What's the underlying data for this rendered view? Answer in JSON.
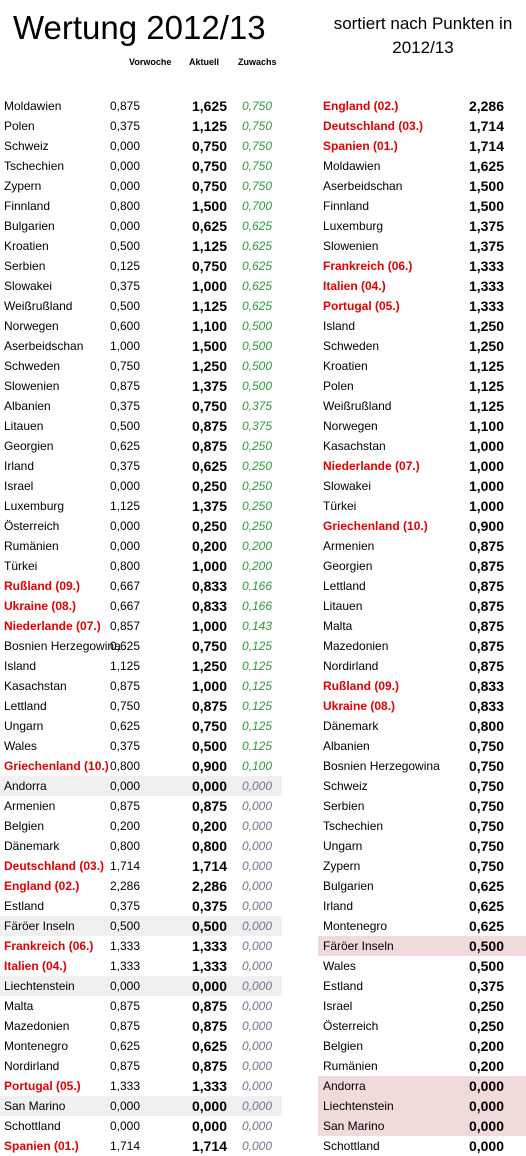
{
  "title": "Wertung 2012/13",
  "sort_title": "sortiert nach Punkten in 2012/13",
  "headers": {
    "vorwoche": "Vorwoche",
    "aktuell": "Aktuell",
    "zuwachs": "Zuwachs"
  },
  "colors": {
    "highlight": "#e00000",
    "gain": "#2f9a3a",
    "zero": "#7a7090",
    "grey_row": "#f0f0f0",
    "pink_row": "#f1dada"
  },
  "left_rows": [
    {
      "name": "Moldawien",
      "vorwoche": "0,875",
      "aktuell": "1,625",
      "zuwachs": "0,750"
    },
    {
      "name": "Polen",
      "vorwoche": "0,375",
      "aktuell": "1,125",
      "zuwachs": "0,750"
    },
    {
      "name": "Schweiz",
      "vorwoche": "0,000",
      "aktuell": "0,750",
      "zuwachs": "0,750"
    },
    {
      "name": "Tschechien",
      "vorwoche": "0,000",
      "aktuell": "0,750",
      "zuwachs": "0,750"
    },
    {
      "name": "Zypern",
      "vorwoche": "0,000",
      "aktuell": "0,750",
      "zuwachs": "0,750"
    },
    {
      "name": "Finnland",
      "vorwoche": "0,800",
      "aktuell": "1,500",
      "zuwachs": "0,700"
    },
    {
      "name": "Bulgarien",
      "vorwoche": "0,000",
      "aktuell": "0,625",
      "zuwachs": "0,625"
    },
    {
      "name": "Kroatien",
      "vorwoche": "0,500",
      "aktuell": "1,125",
      "zuwachs": "0,625"
    },
    {
      "name": "Serbien",
      "vorwoche": "0,125",
      "aktuell": "0,750",
      "zuwachs": "0,625"
    },
    {
      "name": "Slowakei",
      "vorwoche": "0,375",
      "aktuell": "1,000",
      "zuwachs": "0,625"
    },
    {
      "name": "Weißrußland",
      "vorwoche": "0,500",
      "aktuell": "1,125",
      "zuwachs": "0,625"
    },
    {
      "name": "Norwegen",
      "vorwoche": "0,600",
      "aktuell": "1,100",
      "zuwachs": "0,500"
    },
    {
      "name": "Aserbeidschan",
      "vorwoche": "1,000",
      "aktuell": "1,500",
      "zuwachs": "0,500"
    },
    {
      "name": "Schweden",
      "vorwoche": "0,750",
      "aktuell": "1,250",
      "zuwachs": "0,500"
    },
    {
      "name": "Slowenien",
      "vorwoche": "0,875",
      "aktuell": "1,375",
      "zuwachs": "0,500"
    },
    {
      "name": "Albanien",
      "vorwoche": "0,375",
      "aktuell": "0,750",
      "zuwachs": "0,375"
    },
    {
      "name": "Litauen",
      "vorwoche": "0,500",
      "aktuell": "0,875",
      "zuwachs": "0,375"
    },
    {
      "name": "Georgien",
      "vorwoche": "0,625",
      "aktuell": "0,875",
      "zuwachs": "0,250"
    },
    {
      "name": "Irland",
      "vorwoche": "0,375",
      "aktuell": "0,625",
      "zuwachs": "0,250"
    },
    {
      "name": "Israel",
      "vorwoche": "0,000",
      "aktuell": "0,250",
      "zuwachs": "0,250"
    },
    {
      "name": "Luxemburg",
      "vorwoche": "1,125",
      "aktuell": "1,375",
      "zuwachs": "0,250"
    },
    {
      "name": "Österreich",
      "vorwoche": "0,000",
      "aktuell": "0,250",
      "zuwachs": "0,250"
    },
    {
      "name": "Rumänien",
      "vorwoche": "0,000",
      "aktuell": "0,200",
      "zuwachs": "0,200"
    },
    {
      "name": "Türkei",
      "vorwoche": "0,800",
      "aktuell": "1,000",
      "zuwachs": "0,200"
    },
    {
      "name": "Rußland (09.)",
      "vorwoche": "0,667",
      "aktuell": "0,833",
      "zuwachs": "0,166",
      "red": true
    },
    {
      "name": "Ukraine (08.)",
      "vorwoche": "0,667",
      "aktuell": "0,833",
      "zuwachs": "0,166",
      "red": true
    },
    {
      "name": "Niederlande (07.)",
      "vorwoche": "0,857",
      "aktuell": "1,000",
      "zuwachs": "0,143",
      "red": true
    },
    {
      "name": "Bosnien Herzegowina",
      "vorwoche": "0,625",
      "aktuell": "0,750",
      "zuwachs": "0,125"
    },
    {
      "name": "Island",
      "vorwoche": "1,125",
      "aktuell": "1,250",
      "zuwachs": "0,125"
    },
    {
      "name": "Kasachstan",
      "vorwoche": "0,875",
      "aktuell": "1,000",
      "zuwachs": "0,125"
    },
    {
      "name": "Lettland",
      "vorwoche": "0,750",
      "aktuell": "0,875",
      "zuwachs": "0,125"
    },
    {
      "name": "Ungarn",
      "vorwoche": "0,625",
      "aktuell": "0,750",
      "zuwachs": "0,125"
    },
    {
      "name": "Wales",
      "vorwoche": "0,375",
      "aktuell": "0,500",
      "zuwachs": "0,125"
    },
    {
      "name": "Griechenland (10.)",
      "vorwoche": "0,800",
      "aktuell": "0,900",
      "zuwachs": "0,100",
      "red": true
    },
    {
      "name": "Andorra",
      "vorwoche": "0,000",
      "aktuell": "0,000",
      "zuwachs": "0,000",
      "hl": true
    },
    {
      "name": "Armenien",
      "vorwoche": "0,875",
      "aktuell": "0,875",
      "zuwachs": "0,000"
    },
    {
      "name": "Belgien",
      "vorwoche": "0,200",
      "aktuell": "0,200",
      "zuwachs": "0,000"
    },
    {
      "name": "Dänemark",
      "vorwoche": "0,800",
      "aktuell": "0,800",
      "zuwachs": "0,000"
    },
    {
      "name": "Deutschland (03.)",
      "vorwoche": "1,714",
      "aktuell": "1,714",
      "zuwachs": "0,000",
      "red": true
    },
    {
      "name": "England (02.)",
      "vorwoche": "2,286",
      "aktuell": "2,286",
      "zuwachs": "0,000",
      "red": true
    },
    {
      "name": "Estland",
      "vorwoche": "0,375",
      "aktuell": "0,375",
      "zuwachs": "0,000"
    },
    {
      "name": "Färöer Inseln",
      "vorwoche": "0,500",
      "aktuell": "0,500",
      "zuwachs": "0,000",
      "hl": true
    },
    {
      "name": "Frankreich (06.)",
      "vorwoche": "1,333",
      "aktuell": "1,333",
      "zuwachs": "0,000",
      "red": true
    },
    {
      "name": "Italien (04.)",
      "vorwoche": "1,333",
      "aktuell": "1,333",
      "zuwachs": "0,000",
      "red": true
    },
    {
      "name": "Liechtenstein",
      "vorwoche": "0,000",
      "aktuell": "0,000",
      "zuwachs": "0,000",
      "hl": true
    },
    {
      "name": "Malta",
      "vorwoche": "0,875",
      "aktuell": "0,875",
      "zuwachs": "0,000"
    },
    {
      "name": "Mazedonien",
      "vorwoche": "0,875",
      "aktuell": "0,875",
      "zuwachs": "0,000"
    },
    {
      "name": "Montenegro",
      "vorwoche": "0,625",
      "aktuell": "0,625",
      "zuwachs": "0,000"
    },
    {
      "name": "Nordirland",
      "vorwoche": "0,875",
      "aktuell": "0,875",
      "zuwachs": "0,000"
    },
    {
      "name": "Portugal (05.)",
      "vorwoche": "1,333",
      "aktuell": "1,333",
      "zuwachs": "0,000",
      "red": true
    },
    {
      "name": "San Marino",
      "vorwoche": "0,000",
      "aktuell": "0,000",
      "zuwachs": "0,000",
      "hl": true
    },
    {
      "name": "Schottland",
      "vorwoche": "0,000",
      "aktuell": "0,000",
      "zuwachs": "0,000"
    },
    {
      "name": "Spanien (01.)",
      "vorwoche": "1,714",
      "aktuell": "1,714",
      "zuwachs": "0,000",
      "red": true
    }
  ],
  "right_rows": [
    {
      "name": "England (02.)",
      "punkte": "2,286",
      "red": true
    },
    {
      "name": "Deutschland (03.)",
      "punkte": "1,714",
      "red": true
    },
    {
      "name": "Spanien (01.)",
      "punkte": "1,714",
      "red": true
    },
    {
      "name": "Moldawien",
      "punkte": "1,625"
    },
    {
      "name": "Aserbeidschan",
      "punkte": "1,500"
    },
    {
      "name": "Finnland",
      "punkte": "1,500"
    },
    {
      "name": "Luxemburg",
      "punkte": "1,375"
    },
    {
      "name": "Slowenien",
      "punkte": "1,375"
    },
    {
      "name": "Frankreich (06.)",
      "punkte": "1,333",
      "red": true
    },
    {
      "name": "Italien (04.)",
      "punkte": "1,333",
      "red": true
    },
    {
      "name": "Portugal (05.)",
      "punkte": "1,333",
      "red": true
    },
    {
      "name": "Island",
      "punkte": "1,250"
    },
    {
      "name": "Schweden",
      "punkte": "1,250"
    },
    {
      "name": "Kroatien",
      "punkte": "1,125"
    },
    {
      "name": "Polen",
      "punkte": "1,125"
    },
    {
      "name": "Weißrußland",
      "punkte": "1,125"
    },
    {
      "name": "Norwegen",
      "punkte": "1,100"
    },
    {
      "name": "Kasachstan",
      "punkte": "1,000"
    },
    {
      "name": "Niederlande (07.)",
      "punkte": "1,000",
      "red": true
    },
    {
      "name": "Slowakei",
      "punkte": "1,000"
    },
    {
      "name": "Türkei",
      "punkte": "1,000"
    },
    {
      "name": "Griechenland (10.)",
      "punkte": "0,900",
      "red": true
    },
    {
      "name": "Armenien",
      "punkte": "0,875"
    },
    {
      "name": "Georgien",
      "punkte": "0,875"
    },
    {
      "name": "Lettland",
      "punkte": "0,875"
    },
    {
      "name": "Litauen",
      "punkte": "0,875"
    },
    {
      "name": "Malta",
      "punkte": "0,875"
    },
    {
      "name": "Mazedonien",
      "punkte": "0,875"
    },
    {
      "name": "Nordirland",
      "punkte": "0,875"
    },
    {
      "name": "Rußland (09.)",
      "punkte": "0,833",
      "red": true
    },
    {
      "name": "Ukraine (08.)",
      "punkte": "0,833",
      "red": true
    },
    {
      "name": "Dänemark",
      "punkte": "0,800"
    },
    {
      "name": "Albanien",
      "punkte": "0,750"
    },
    {
      "name": "Bosnien Herzegowina",
      "punkte": "0,750"
    },
    {
      "name": "Schweiz",
      "punkte": "0,750"
    },
    {
      "name": "Serbien",
      "punkte": "0,750"
    },
    {
      "name": "Tschechien",
      "punkte": "0,750"
    },
    {
      "name": "Ungarn",
      "punkte": "0,750"
    },
    {
      "name": "Zypern",
      "punkte": "0,750"
    },
    {
      "name": "Bulgarien",
      "punkte": "0,625"
    },
    {
      "name": "Irland",
      "punkte": "0,625"
    },
    {
      "name": "Montenegro",
      "punkte": "0,625"
    },
    {
      "name": "Färöer Inseln",
      "punkte": "0,500",
      "hl": true
    },
    {
      "name": "Wales",
      "punkte": "0,500"
    },
    {
      "name": "Estland",
      "punkte": "0,375"
    },
    {
      "name": "Israel",
      "punkte": "0,250"
    },
    {
      "name": "Österreich",
      "punkte": "0,250"
    },
    {
      "name": "Belgien",
      "punkte": "0,200"
    },
    {
      "name": "Rumänien",
      "punkte": "0,200"
    },
    {
      "name": "Andorra",
      "punkte": "0,000",
      "hl": true
    },
    {
      "name": "Liechtenstein",
      "punkte": "0,000",
      "hl": true
    },
    {
      "name": "San Marino",
      "punkte": "0,000",
      "hl": true
    },
    {
      "name": "Schottland",
      "punkte": "0,000"
    }
  ]
}
